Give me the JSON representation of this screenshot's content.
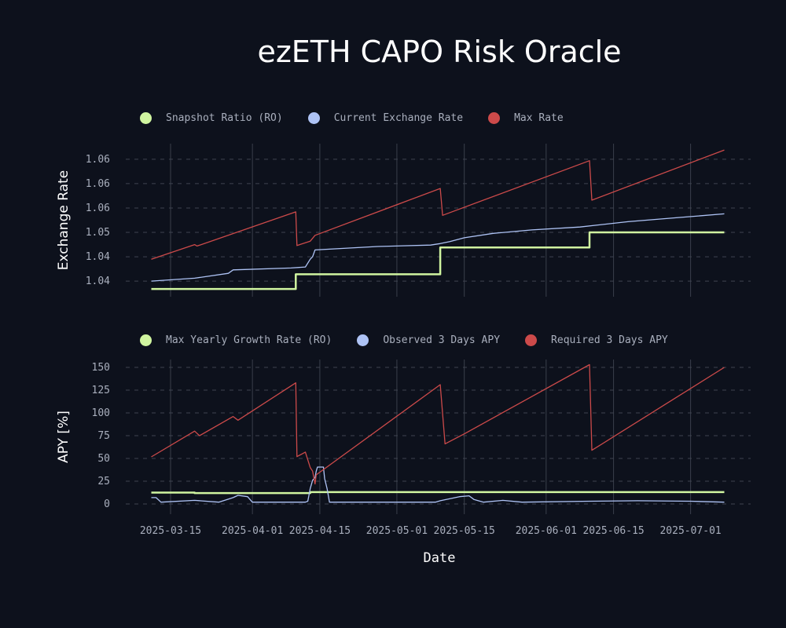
{
  "title": "ezETH CAPO Risk Oracle",
  "chart_data": [
    {
      "type": "line",
      "ylabel": "Exchange Rate",
      "ylim": [
        1.0368,
        1.0682
      ],
      "xlim": [
        "2025-03-07",
        "2025-07-12"
      ],
      "yticks": [
        1.04,
        1.045,
        1.05,
        1.055,
        1.06,
        1.065
      ],
      "ytick_labels": [
        "1.04",
        "1.04",
        "1.05",
        "1.06",
        "1.06",
        "1.06"
      ],
      "legend_position": "top-left",
      "series": [
        {
          "name": "Snapshot Ratio (RO)",
          "color": "#d0f5a0",
          "width": 2.5,
          "points": [
            [
              "2025-03-11",
              1.0384
            ],
            [
              "2025-04-10",
              1.0384
            ],
            [
              "2025-04-10",
              1.0414
            ],
            [
              "2025-05-10",
              1.0414
            ],
            [
              "2025-05-10",
              1.0469
            ],
            [
              "2025-06-10",
              1.0469
            ],
            [
              "2025-06-10",
              1.05
            ],
            [
              "2025-07-08",
              1.05
            ]
          ]
        },
        {
          "name": "Current Exchange Rate",
          "color": "#aec3f5",
          "width": 1.3,
          "points": [
            [
              "2025-03-11",
              1.04
            ],
            [
              "2025-03-20",
              1.0406
            ],
            [
              "2025-03-27",
              1.0416
            ],
            [
              "2025-03-28",
              1.0423
            ],
            [
              "2025-04-09",
              1.0427
            ],
            [
              "2025-04-12",
              1.0429
            ],
            [
              "2025-04-13",
              1.0445
            ],
            [
              "2025-04-13T12:00",
              1.045
            ],
            [
              "2025-04-14",
              1.0464
            ],
            [
              "2025-04-27",
              1.0471
            ],
            [
              "2025-05-08",
              1.0474
            ],
            [
              "2025-05-10",
              1.0477
            ],
            [
              "2025-05-12",
              1.0481
            ],
            [
              "2025-05-15",
              1.0489
            ],
            [
              "2025-05-21",
              1.0498
            ],
            [
              "2025-05-29",
              1.0505
            ],
            [
              "2025-06-08",
              1.0511
            ],
            [
              "2025-06-18",
              1.0522
            ],
            [
              "2025-06-28",
              1.053
            ],
            [
              "2025-07-08",
              1.0538
            ]
          ]
        },
        {
          "name": "Max Rate",
          "color": "#cc4a4a",
          "width": 1.3,
          "points": [
            [
              "2025-03-11",
              1.0445
            ],
            [
              "2025-03-20",
              1.0475
            ],
            [
              "2025-03-20T12:00",
              1.0472
            ],
            [
              "2025-04-10",
              1.0542
            ],
            [
              "2025-04-10T06:00",
              1.0473
            ],
            [
              "2025-04-13",
              1.0482
            ],
            [
              "2025-04-14",
              1.0494
            ],
            [
              "2025-05-10",
              1.059
            ],
            [
              "2025-05-10T12:00",
              1.0535
            ],
            [
              "2025-06-10",
              1.0647
            ],
            [
              "2025-06-10T12:00",
              1.0566
            ],
            [
              "2025-07-08",
              1.0669
            ]
          ]
        }
      ]
    },
    {
      "type": "line",
      "ylabel": "APY [%]",
      "xlabel": "Date",
      "ylim": [
        -11.2,
        158.6
      ],
      "xlim": [
        "2025-03-07",
        "2025-07-12"
      ],
      "yticks": [
        0,
        25,
        50,
        75,
        100,
        125,
        150
      ],
      "ytick_labels": [
        "0",
        "25",
        "50",
        "75",
        "100",
        "125",
        "150"
      ],
      "xticks": [
        "2025-03-15",
        "2025-04-01",
        "2025-04-15",
        "2025-05-01",
        "2025-05-15",
        "2025-06-01",
        "2025-06-15",
        "2025-07-01"
      ],
      "xtick_labels": [
        "2025-03-15",
        "2025-04-01",
        "2025-04-15",
        "2025-05-01",
        "2025-05-15",
        "2025-06-01",
        "2025-06-15",
        "2025-07-01"
      ],
      "legend_position": "top-left",
      "series": [
        {
          "name": "Max Yearly Growth Rate (RO)",
          "color": "#d0f5a0",
          "width": 2.5,
          "points": [
            [
              "2025-03-11",
              12.5
            ],
            [
              "2025-03-20",
              12.5
            ],
            [
              "2025-03-20",
              12
            ],
            [
              "2025-04-13",
              12
            ],
            [
              "2025-04-13",
              13
            ],
            [
              "2025-07-08",
              13
            ]
          ]
        },
        {
          "name": "Observed 3 Days APY",
          "color": "#aec3f5",
          "width": 1.3,
          "points": [
            [
              "2025-03-11",
              7
            ],
            [
              "2025-03-12",
              7
            ],
            [
              "2025-03-13",
              2
            ],
            [
              "2025-03-20",
              4
            ],
            [
              "2025-03-25",
              2
            ],
            [
              "2025-03-28",
              7
            ],
            [
              "2025-03-29",
              9.5
            ],
            [
              "2025-03-31",
              8
            ],
            [
              "2025-04-01",
              2
            ],
            [
              "2025-04-12",
              2
            ],
            [
              "2025-04-12T12:00",
              3
            ],
            [
              "2025-04-13",
              17
            ],
            [
              "2025-04-13T12:00",
              26
            ],
            [
              "2025-04-14",
              29
            ],
            [
              "2025-04-14T06:00",
              36
            ],
            [
              "2025-04-14T12:00",
              40.5
            ],
            [
              "2025-04-15T18:00",
              40.5
            ],
            [
              "2025-04-16",
              28
            ],
            [
              "2025-04-16T12:00",
              17
            ],
            [
              "2025-04-17",
              2
            ],
            [
              "2025-05-09",
              2
            ],
            [
              "2025-05-10",
              3.5
            ],
            [
              "2025-05-14",
              8
            ],
            [
              "2025-05-16",
              9
            ],
            [
              "2025-05-17",
              5
            ],
            [
              "2025-05-19",
              2
            ],
            [
              "2025-05-23",
              4
            ],
            [
              "2025-05-27",
              2
            ],
            [
              "2025-06-10",
              3
            ],
            [
              "2025-06-20",
              3.5
            ],
            [
              "2025-07-01",
              3
            ],
            [
              "2025-07-08",
              2
            ]
          ]
        },
        {
          "name": "Required 3 Days APY",
          "color": "#cc4a4a",
          "width": 1.3,
          "points": [
            [
              "2025-03-11",
              51.7
            ],
            [
              "2025-03-20",
              80
            ],
            [
              "2025-03-21",
              75
            ],
            [
              "2025-03-28",
              96
            ],
            [
              "2025-03-29",
              92
            ],
            [
              "2025-04-10",
              133
            ],
            [
              "2025-04-10T06:00",
              52
            ],
            [
              "2025-04-12",
              57
            ],
            [
              "2025-04-13",
              40
            ],
            [
              "2025-04-13T12:00",
              36
            ],
            [
              "2025-04-14",
              22
            ],
            [
              "2025-04-14T06:00",
              32
            ],
            [
              "2025-05-10",
              131
            ],
            [
              "2025-05-11",
              66
            ],
            [
              "2025-05-15",
              77
            ],
            [
              "2025-06-10",
              153
            ],
            [
              "2025-06-10T12:00",
              59
            ],
            [
              "2025-07-08",
              150
            ]
          ]
        }
      ]
    }
  ]
}
